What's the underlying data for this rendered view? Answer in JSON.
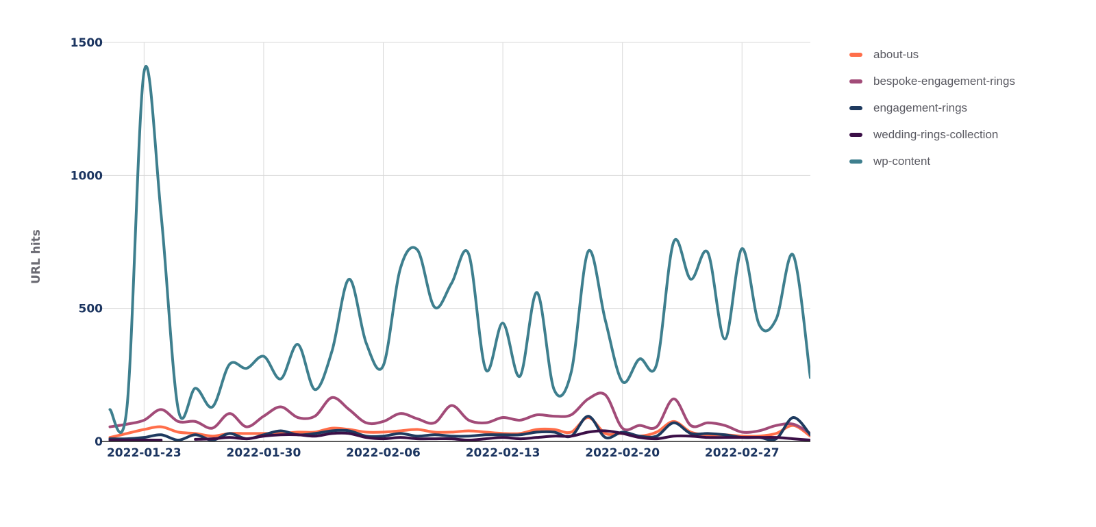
{
  "chart_data": {
    "type": "line",
    "title": "",
    "xlabel": "",
    "ylabel": "URL hits",
    "ylim": [
      0,
      1500
    ],
    "xlim": [
      "2022-01-20T12:00:00",
      "2022-03-03T00:00:00"
    ],
    "grid": true,
    "legend_position": "right",
    "y_ticks": [
      "0",
      "500",
      "1000",
      "1500"
    ],
    "x_ticks": [
      "2022-01-23",
      "2022-01-30",
      "2022-02-06",
      "2022-02-13",
      "2022-02-20",
      "2022-02-27"
    ],
    "x": [
      "2022-01-21",
      "2022-01-22",
      "2022-01-23",
      "2022-01-24",
      "2022-01-25",
      "2022-01-26",
      "2022-01-27",
      "2022-01-28",
      "2022-01-29",
      "2022-01-30",
      "2022-01-31",
      "2022-02-01",
      "2022-02-02",
      "2022-02-03",
      "2022-02-04",
      "2022-02-05",
      "2022-02-06",
      "2022-02-07",
      "2022-02-08",
      "2022-02-09",
      "2022-02-10",
      "2022-02-11",
      "2022-02-12",
      "2022-02-13",
      "2022-02-14",
      "2022-02-15",
      "2022-02-16",
      "2022-02-17",
      "2022-02-18",
      "2022-02-19",
      "2022-02-20",
      "2022-02-21",
      "2022-02-22",
      "2022-02-23",
      "2022-02-24",
      "2022-02-25",
      "2022-02-26",
      "2022-02-27",
      "2022-02-28",
      "2022-03-01",
      "2022-03-02",
      "2022-03-03"
    ],
    "series": [
      {
        "name": "about-us",
        "color": "#ff6e4a",
        "values": [
          15,
          30,
          45,
          55,
          35,
          30,
          20,
          30,
          30,
          30,
          30,
          35,
          35,
          50,
          45,
          35,
          35,
          40,
          45,
          35,
          35,
          40,
          35,
          30,
          30,
          45,
          45,
          35,
          90,
          30,
          30,
          20,
          35,
          75,
          35,
          25,
          25,
          20,
          20,
          30,
          60,
          20
        ]
      },
      {
        "name": "bespoke-engagement-rings",
        "color": "#a24b78",
        "values": [
          55,
          65,
          80,
          120,
          75,
          75,
          50,
          105,
          55,
          95,
          130,
          90,
          95,
          165,
          120,
          70,
          75,
          105,
          85,
          70,
          135,
          80,
          70,
          90,
          80,
          100,
          95,
          100,
          160,
          175,
          50,
          60,
          55,
          160,
          60,
          70,
          60,
          35,
          40,
          60,
          65,
          30
        ]
      },
      {
        "name": "engagement-rings",
        "color": "#1e3a5f",
        "values": [
          10,
          10,
          15,
          25,
          5,
          25,
          5,
          30,
          10,
          25,
          40,
          25,
          30,
          40,
          40,
          20,
          20,
          30,
          20,
          25,
          20,
          20,
          25,
          25,
          25,
          35,
          35,
          20,
          95,
          15,
          35,
          20,
          20,
          70,
          30,
          30,
          25,
          15,
          15,
          10,
          90,
          25
        ]
      },
      {
        "name": "wedding-rings-collection",
        "color": "#3b0f47",
        "values": [
          5,
          5,
          5,
          5,
          null,
          8,
          10,
          15,
          10,
          20,
          25,
          25,
          20,
          30,
          30,
          15,
          10,
          15,
          10,
          10,
          10,
          5,
          10,
          15,
          10,
          15,
          20,
          20,
          35,
          40,
          30,
          15,
          10,
          20,
          20,
          15,
          15,
          15,
          15,
          15,
          10,
          5
        ]
      },
      {
        "name": "wp-content",
        "color": "#3e7f8e",
        "values": [
          120,
          130,
          1390,
          850,
          120,
          200,
          130,
          290,
          275,
          320,
          235,
          365,
          195,
          340,
          610,
          370,
          285,
          650,
          720,
          505,
          595,
          705,
          270,
          445,
          245,
          560,
          195,
          260,
          715,
          455,
          225,
          310,
          290,
          750,
          610,
          710,
          385,
          725,
          440,
          460,
          700,
          240
        ]
      }
    ]
  }
}
